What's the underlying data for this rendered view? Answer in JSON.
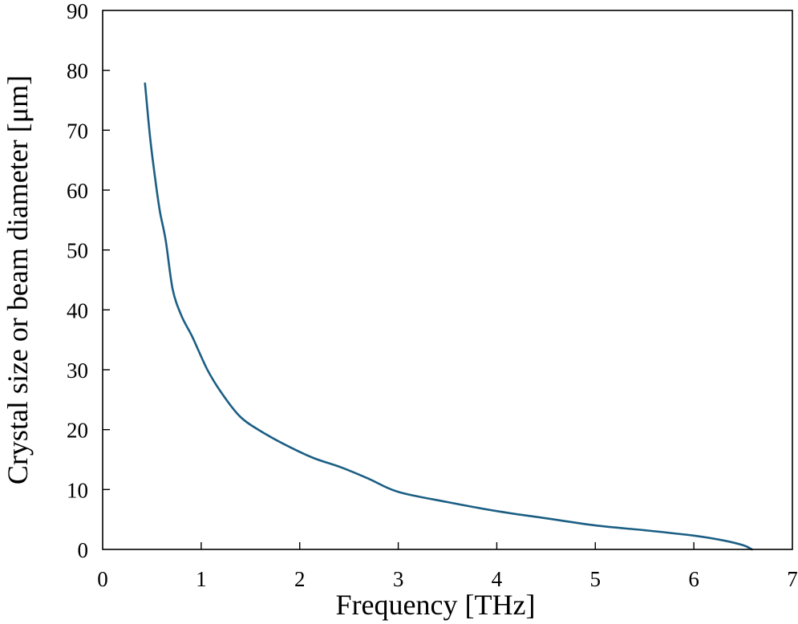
{
  "chart_data": {
    "type": "line",
    "title": "",
    "xlabel": "Frequency [THz]",
    "ylabel": "Crystal size or beam diameter [μm]",
    "xlim": [
      0,
      7
    ],
    "ylim": [
      0,
      90
    ],
    "xticks": [
      0,
      1,
      2,
      3,
      4,
      5,
      6,
      7
    ],
    "yticks": [
      0,
      10,
      20,
      30,
      40,
      50,
      60,
      70,
      80,
      90
    ],
    "grid": false,
    "legend": null,
    "series": [
      {
        "name": "Crystal size or beam diameter",
        "color": "#1b5e84",
        "x": [
          0.43,
          0.48,
          0.53,
          0.58,
          0.64,
          0.71,
          0.8,
          0.91,
          1.06,
          1.2,
          1.4,
          1.65,
          1.91,
          2.15,
          2.42,
          2.7,
          3.0,
          3.5,
          4.0,
          4.5,
          5.0,
          5.5,
          6.0,
          6.3,
          6.5,
          6.59
        ],
        "values": [
          77.8,
          69.0,
          62.3,
          56.5,
          51.6,
          43.5,
          39.0,
          35.5,
          30.1,
          26.3,
          22.1,
          19.3,
          17.0,
          15.2,
          13.7,
          11.8,
          9.6,
          7.9,
          6.4,
          5.2,
          4.0,
          3.2,
          2.3,
          1.5,
          0.7,
          0.0
        ]
      }
    ]
  },
  "axes": {
    "x_title": "Frequency [THz]",
    "y_title": "Crystal size or beam diameter [μm]",
    "x_tick_labels": [
      "0",
      "1",
      "2",
      "3",
      "4",
      "5",
      "6",
      "7"
    ],
    "y_tick_labels": [
      "0",
      "10",
      "20",
      "30",
      "40",
      "50",
      "60",
      "70",
      "80",
      "90"
    ]
  }
}
